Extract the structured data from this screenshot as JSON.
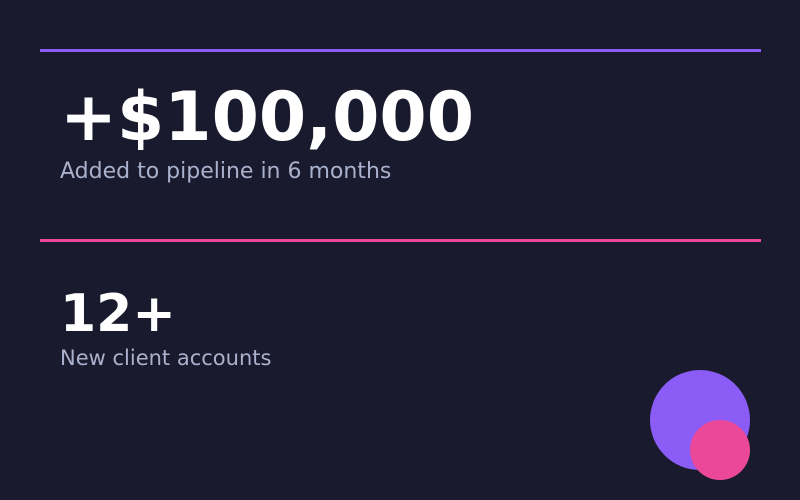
{
  "colors": {
    "background": "#1a1a2e",
    "accent_purple": "#8b5cf6",
    "accent_pink": "#ec4899",
    "text": "#ffffff",
    "muted": "#a9b1cc"
  },
  "stats": [
    {
      "value": "+$100,000",
      "label": "Added to pipeline in 6 months"
    },
    {
      "value": "12+",
      "label": "New client accounts"
    }
  ]
}
